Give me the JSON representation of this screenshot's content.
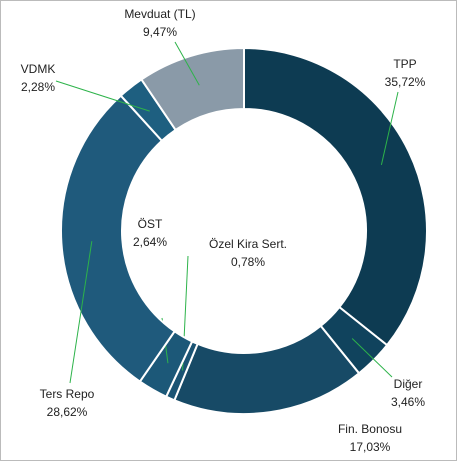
{
  "chart_data": {
    "type": "donut",
    "categories": [
      "TPP",
      "Diğer",
      "Fin. Bonosu",
      "Özel Kira Sert.",
      "ÖST",
      "Ters Repo",
      "VDMK",
      "Mevduat (TL)"
    ],
    "values": [
      35.72,
      3.46,
      17.03,
      0.78,
      2.64,
      28.62,
      2.28,
      9.47
    ],
    "value_labels": [
      "35,72%",
      "3,46%",
      "17,03%",
      "0,78%",
      "2,64%",
      "28,62%",
      "2,28%",
      "9,47%"
    ],
    "colors": [
      "#0d3b52",
      "#10435d",
      "#174a66",
      "#1b5474",
      "#1c5878",
      "#1f5a7c",
      "#1e5f80",
      "#8a9aa8"
    ]
  }
}
